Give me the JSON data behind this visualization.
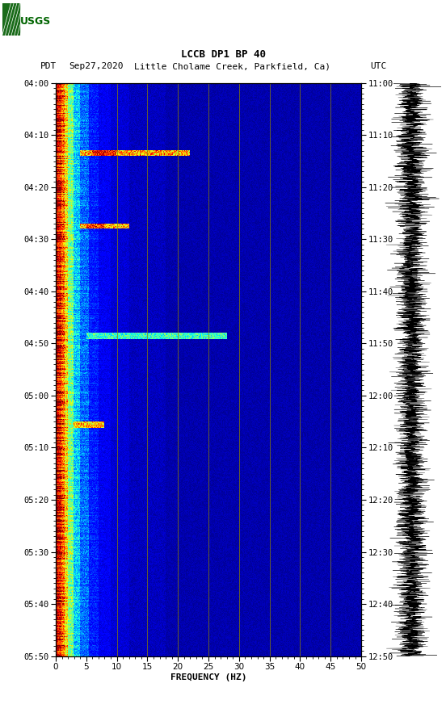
{
  "title_line1": "LCCB DP1 BP 40",
  "title_line2_pdt": "PDT",
  "title_line2_date": "Sep27,2020",
  "title_line2_loc": "Little Cholame Creek, Parkfield, Ca)",
  "title_line2_utc": "UTC",
  "xlabel": "FREQUENCY (HZ)",
  "freq_min": 0,
  "freq_max": 50,
  "left_time_labels": [
    "04:00",
    "04:10",
    "04:20",
    "04:30",
    "04:40",
    "04:50",
    "05:00",
    "05:10",
    "05:20",
    "05:30",
    "05:40",
    "05:50"
  ],
  "right_time_labels": [
    "11:00",
    "11:10",
    "11:20",
    "11:30",
    "11:40",
    "11:50",
    "12:00",
    "12:10",
    "12:20",
    "12:30",
    "12:40",
    "12:50"
  ],
  "freq_ticks": [
    0,
    5,
    10,
    15,
    20,
    25,
    30,
    35,
    40,
    45,
    50
  ],
  "vertical_lines_freq": [
    10,
    15,
    20,
    25,
    30,
    35,
    40,
    45
  ],
  "vertical_line_color": "#8B8000",
  "bg_color": "#ffffff",
  "n_time": 660,
  "n_freq": 500,
  "logo_color": "#006400",
  "seismogram_color": "#000000",
  "event1_tmin": 13,
  "event1_tmax": 14,
  "event1_fmin": 4,
  "event1_fmax": 22,
  "event2_tmin": 27,
  "event2_tmax": 28,
  "event2_fmin": 4,
  "event2_fmax": 12,
  "event3_tmin": 48,
  "event3_tmax": 49,
  "event3_fmin": 5,
  "event3_fmax": 28,
  "event4_tmin": 65,
  "event4_tmax": 66,
  "event4_fmin": 3,
  "event4_fmax": 8
}
